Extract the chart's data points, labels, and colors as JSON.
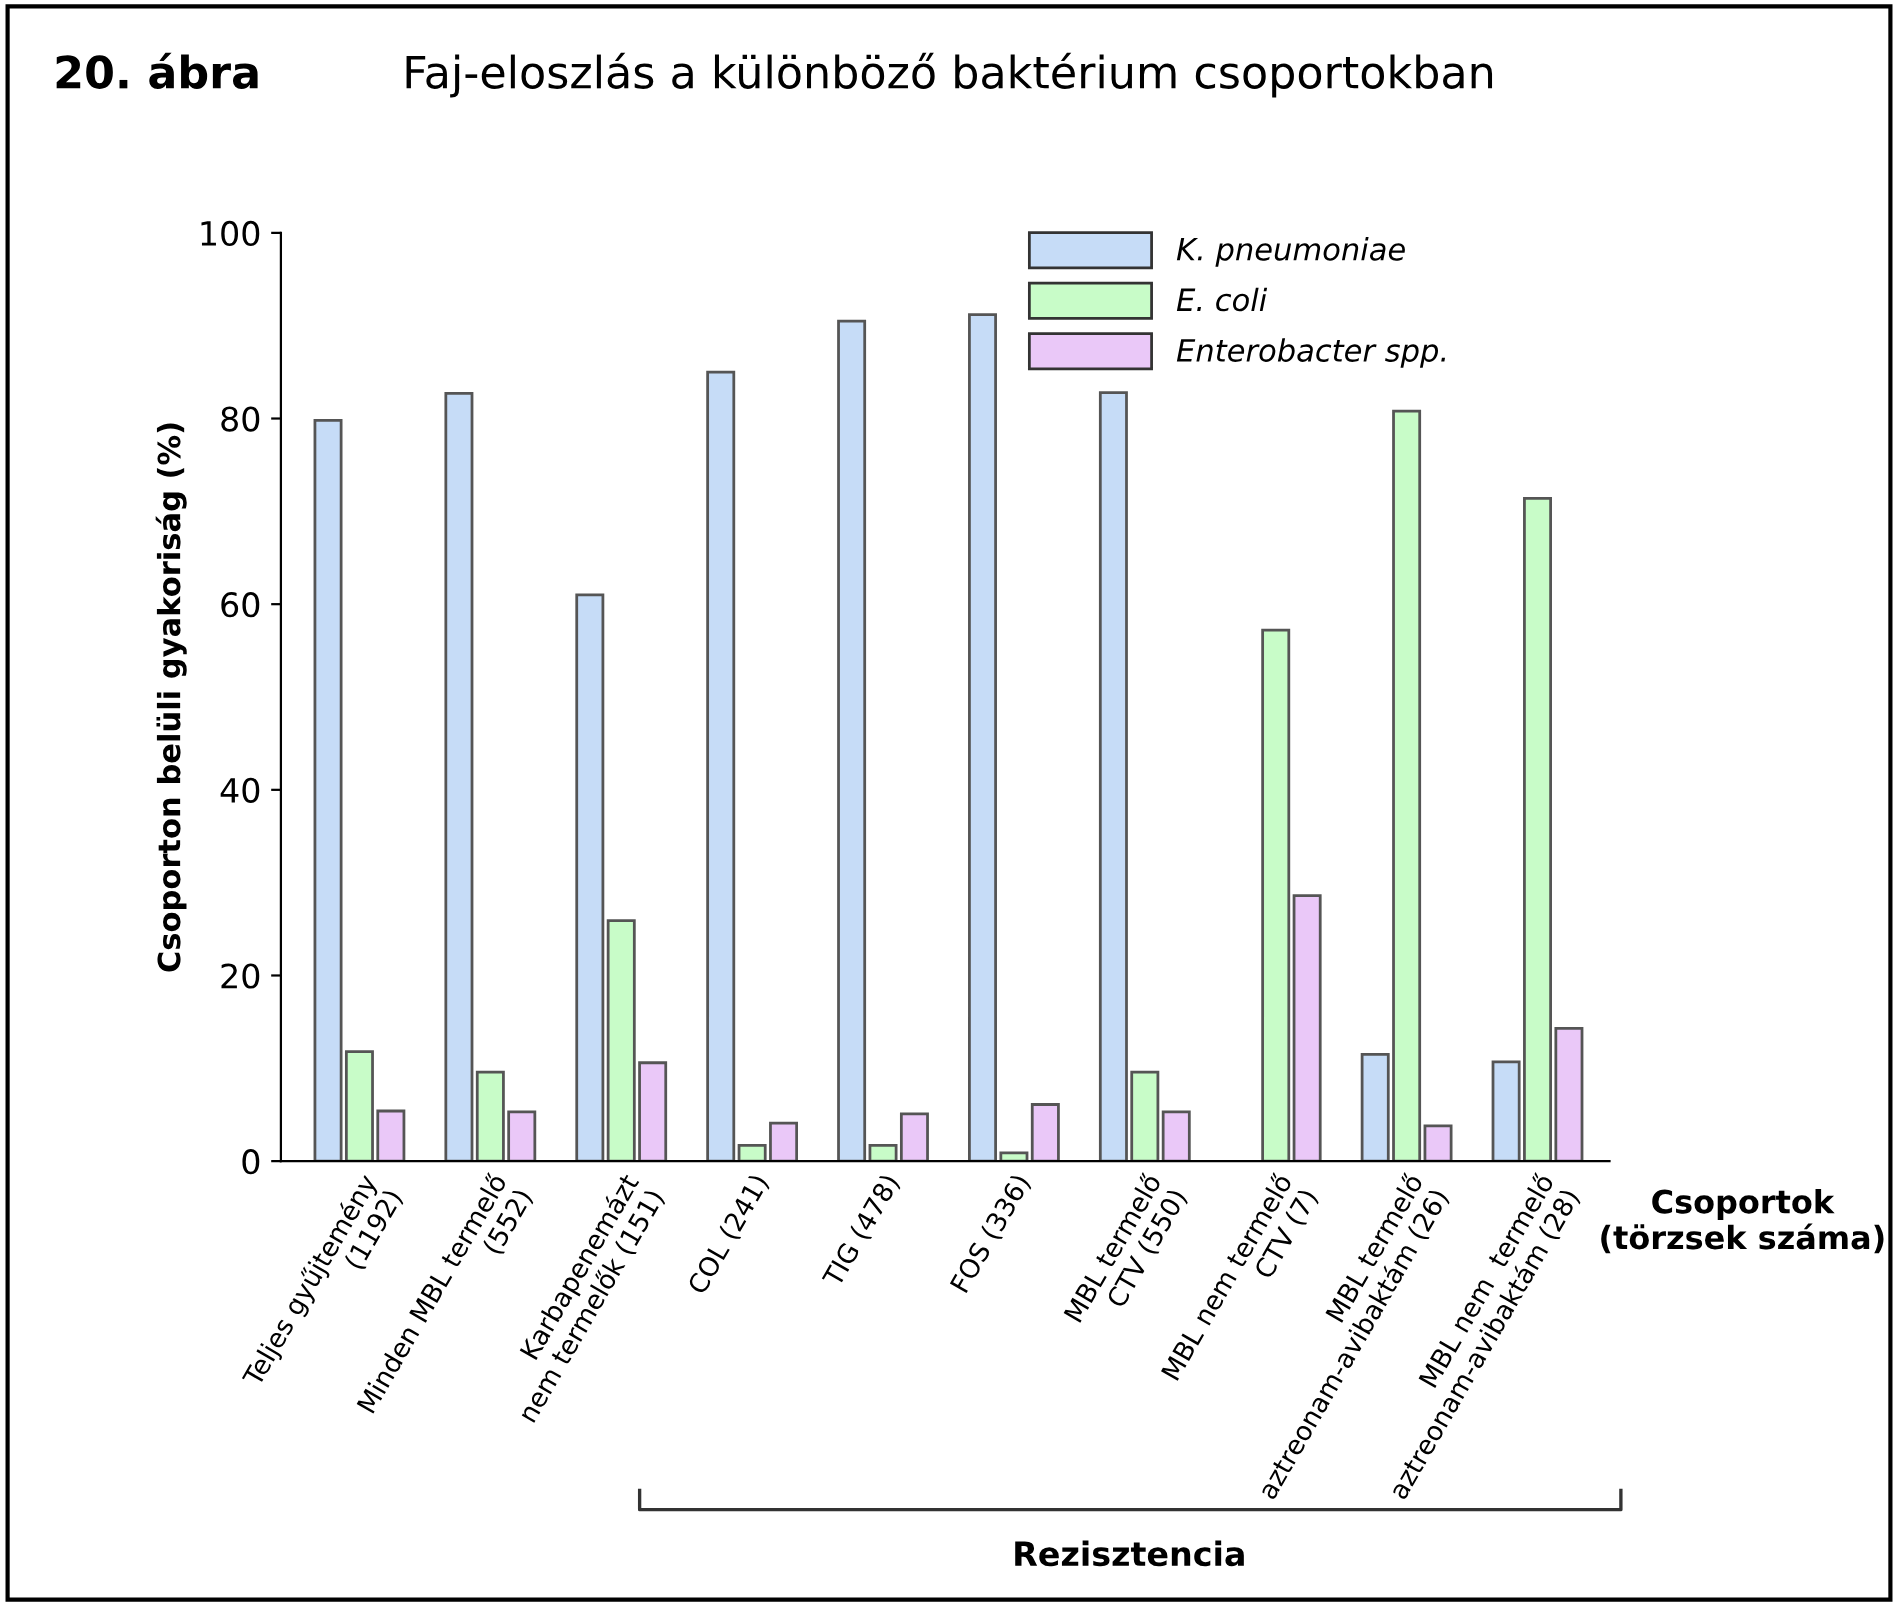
{
  "chart_data": {
    "type": "bar",
    "title": "Faj-eloszlás a különböző baktérium csoportokban",
    "ylabel": "Csoporton belüli gyakoriság (%)",
    "xlabel": "Csoportok\n(törzsek száma)",
    "annotations": [
      "20. ábra",
      "Rezisztencia"
    ],
    "categories": [
      "Teljes gyűjtemény\n(1192)",
      "Minden MBL termelő\n(552)",
      "Karbapenemázt\nnem termelők (151)",
      "COL (241)",
      "TIG (478)",
      "FOS (336)",
      "MBL termelő\nCTV (550)",
      "MBL nem termelő\nCTV (7)",
      "MBL termelő\naztreonam-avibaktám (26)",
      "MBL nem  termelő\naztreonam-avibaktám (28)"
    ],
    "series": [
      {
        "name": "K. pneumoniae",
        "color": "#c6dcf7",
        "values": [
          79.8,
          82.7,
          61.0,
          85.0,
          90.5,
          91.2,
          82.8,
          null,
          11.5,
          10.7
        ]
      },
      {
        "name": "E. coli",
        "color": "#c8fcc8",
        "values": [
          11.8,
          9.6,
          25.9,
          1.7,
          1.7,
          0.9,
          9.6,
          57.2,
          80.8,
          71.4
        ]
      },
      {
        "name": "Enterobacter spp.",
        "color": "#eac8f8",
        "values": [
          5.4,
          5.3,
          10.6,
          4.1,
          5.1,
          6.1,
          5.3,
          28.6,
          3.8,
          14.3
        ]
      }
    ],
    "ylim": [
      0,
      100
    ],
    "yticks": [
      0,
      20,
      40,
      60,
      80,
      100
    ],
    "grid": false,
    "legend": "top right"
  }
}
